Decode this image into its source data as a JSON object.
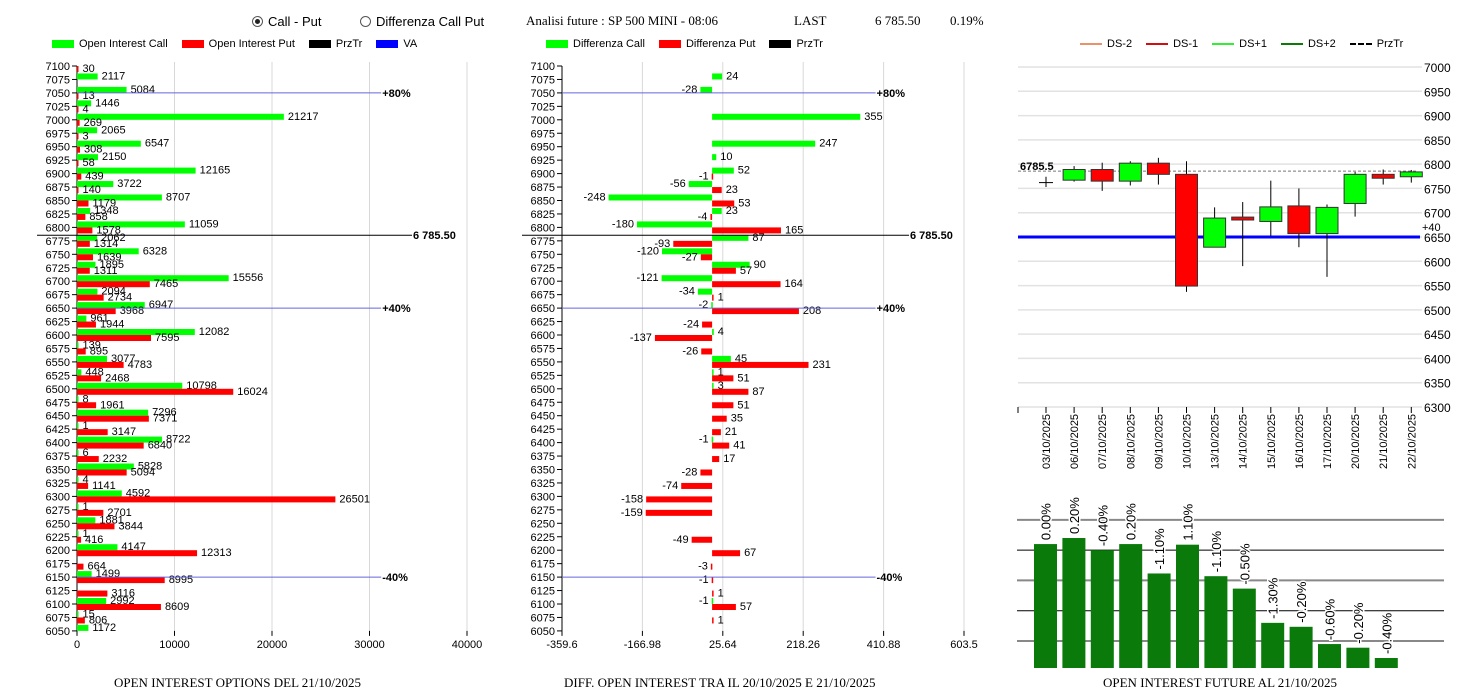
{
  "header": {
    "radio_call_put": "Call - Put",
    "radio_diff": "Differenza Call Put",
    "selected_radio": "call_put",
    "analysis_label": "Analisi future : SP 500 MINI - 08:06",
    "last_label": "LAST",
    "last_value": "6 785.50",
    "change_pct": "0.19%"
  },
  "colors": {
    "call": "#00ff00",
    "put": "#ff0000",
    "przTr": "#000000",
    "va": "#0000ff",
    "va_line": "#6666dd",
    "ds_minus2": "#e8916a",
    "ds_minus1": "#d01010",
    "ds_plus1": "#33ee33",
    "ds_plus2": "#0a7a0a",
    "oi_bar": "#0a7a0a"
  },
  "chart_data": [
    {
      "id": "oi_options",
      "type": "bar",
      "orientation": "horizontal",
      "title": "OPEN INTEREST OPTIONS DEL 21/10/2025",
      "legend": [
        "Open Interest Call",
        "Open Interest Put",
        "PrzTr",
        "VA"
      ],
      "legend_placement": "top",
      "xlim": [
        0,
        40000
      ],
      "xticks": [
        "0",
        "10000",
        "20000",
        "30000",
        "40000"
      ],
      "categories": [
        "7100",
        "7075",
        "7050",
        "7025",
        "7000",
        "6975",
        "6950",
        "6925",
        "6900",
        "6875",
        "6850",
        "6825",
        "6800",
        "6775",
        "6750",
        "6725",
        "6700",
        "6675",
        "6650",
        "6625",
        "6600",
        "6575",
        "6550",
        "6525",
        "6500",
        "6475",
        "6450",
        "6425",
        "6400",
        "6375",
        "6350",
        "6325",
        "6300",
        "6275",
        "6250",
        "6225",
        "6200",
        "6175",
        "6150",
        "6125",
        "6100",
        "6075",
        "6050"
      ],
      "series": [
        {
          "name": "Open Interest Call",
          "values": [
            0,
            2117,
            5084,
            1446,
            21217,
            2065,
            6547,
            2150,
            12165,
            3722,
            8707,
            1348,
            11059,
            2062,
            6328,
            1895,
            15556,
            2094,
            6947,
            961,
            12082,
            139,
            3077,
            448,
            10798,
            8,
            7296,
            1,
            8722,
            6,
            5828,
            4,
            4592,
            1,
            1881,
            1,
            4147,
            0,
            1499,
            0,
            2992,
            15,
            1172
          ]
        },
        {
          "name": "Open Interest Put",
          "values": [
            30,
            0,
            13,
            4,
            269,
            3,
            308,
            58,
            439,
            140,
            1179,
            858,
            1578,
            1314,
            1639,
            1311,
            7465,
            2734,
            3968,
            1944,
            7595,
            895,
            4783,
            2468,
            16024,
            1961,
            7371,
            3147,
            6840,
            2232,
            5094,
            1141,
            26501,
            2701,
            3844,
            416,
            12313,
            664,
            8995,
            3116,
            8609,
            806,
            0
          ]
        }
      ],
      "annotations": [
        {
          "label": "+80%",
          "strike": 7050,
          "type": "VA"
        },
        {
          "label": "6 785.50",
          "price": 6785.5,
          "type": "PrzTr"
        },
        {
          "label": "+40%",
          "strike": 6650,
          "type": "VA"
        },
        {
          "label": "-40%",
          "strike": 6150,
          "type": "VA"
        }
      ]
    },
    {
      "id": "oi_diff",
      "type": "bar",
      "orientation": "horizontal",
      "title": "DIFF. OPEN INTEREST TRA IL 20/10/2025 E 21/10/2025",
      "legend": [
        "Differenza Call",
        "Differenza Put",
        "PrzTr"
      ],
      "legend_placement": "top",
      "xlim": [
        -359.6,
        603.5
      ],
      "xticks": [
        "-359.6",
        "-166.98",
        "25.64",
        "218.26",
        "410.88",
        "603.5"
      ],
      "categories": [
        "7100",
        "7075",
        "7050",
        "7025",
        "7000",
        "6975",
        "6950",
        "6925",
        "6900",
        "6875",
        "6850",
        "6825",
        "6800",
        "6775",
        "6750",
        "6725",
        "6700",
        "6675",
        "6650",
        "6625",
        "6600",
        "6575",
        "6550",
        "6525",
        "6500",
        "6475",
        "6450",
        "6425",
        "6400",
        "6375",
        "6350",
        "6325",
        "6300",
        "6275",
        "6250",
        "6225",
        "6200",
        "6175",
        "6150",
        "6125",
        "6100",
        "6075",
        "6050"
      ],
      "series": [
        {
          "name": "Differenza Call",
          "values": [
            null,
            24,
            -28,
            null,
            355,
            null,
            247,
            10,
            52,
            -56,
            -248,
            23,
            -180,
            87,
            -120,
            90,
            -121,
            -34,
            -2,
            null,
            4,
            null,
            45,
            1,
            3,
            null,
            null,
            null,
            -1,
            null,
            null,
            null,
            null,
            null,
            null,
            null,
            null,
            null,
            null,
            null,
            -1,
            null,
            null
          ]
        },
        {
          "name": "Differenza Put",
          "values": [
            null,
            null,
            null,
            null,
            null,
            null,
            null,
            null,
            -1,
            23,
            53,
            -4,
            165,
            -93,
            -27,
            57,
            164,
            1,
            208,
            -24,
            -137,
            -26,
            231,
            51,
            87,
            51,
            35,
            21,
            41,
            17,
            -28,
            -74,
            -158,
            -159,
            null,
            -49,
            67,
            -3,
            -1,
            1,
            57,
            1,
            null
          ]
        }
      ],
      "annotations": [
        {
          "label": "+80%",
          "strike": 7050,
          "type": "VA"
        },
        {
          "label": "6 785.50",
          "price": 6785.5,
          "type": "PrzTr"
        },
        {
          "label": "+40%",
          "strike": 6650,
          "type": "VA"
        },
        {
          "label": "-40%",
          "strike": 6150,
          "type": "VA"
        }
      ]
    },
    {
      "id": "future_candles",
      "type": "candlestick",
      "legend": [
        "DS-2",
        "DS-1",
        "DS+1",
        "DS+2",
        "PrzTr"
      ],
      "legend_placement": "top",
      "ylim": [
        6300,
        7000
      ],
      "yticks": [
        "7000",
        "6950",
        "6900",
        "6850",
        "6800",
        "6750",
        "6700",
        "6650",
        "6600",
        "6550",
        "6500",
        "6450",
        "6400",
        "6350",
        "6300"
      ],
      "price_label": "6785.5",
      "price": 6785.5,
      "level_line": {
        "value": 6650,
        "label": "+40"
      },
      "categories": [
        "03/10/2025",
        "06/10/2025",
        "07/10/2025",
        "08/10/2025",
        "09/10/2025",
        "10/10/2025",
        "13/10/2025",
        "14/10/2025",
        "15/10/2025",
        "16/10/2025",
        "17/10/2025",
        "20/10/2025",
        "21/10/2025",
        "22/10/2025"
      ],
      "ohlc": [
        [
          6762,
          6774,
          6753,
          6762
        ],
        [
          6767,
          6796,
          6764,
          6789
        ],
        [
          6789,
          6803,
          6745,
          6765
        ],
        [
          6765,
          6806,
          6756,
          6802
        ],
        [
          6802,
          6813,
          6758,
          6779
        ],
        [
          6779,
          6806,
          6537,
          6549
        ],
        [
          6629,
          6711,
          6629,
          6689
        ],
        [
          6691,
          6722,
          6590,
          6685
        ],
        [
          6682,
          6766,
          6652,
          6712
        ],
        [
          6714,
          6750,
          6629,
          6657
        ],
        [
          6657,
          6717,
          6568,
          6711
        ],
        [
          6719,
          6784,
          6692,
          6779
        ],
        [
          6779,
          6789,
          6758,
          6771
        ],
        [
          6774,
          6788,
          6762,
          6784
        ]
      ]
    },
    {
      "id": "oi_future",
      "type": "bar",
      "title": "OPEN INTEREST FUTURE AL 21/10/2025",
      "grid": true,
      "ylim": [
        0,
        5.0
      ],
      "values_relative": [
        4.09,
        4.29,
        3.89,
        4.09,
        3.12,
        4.07,
        3.03,
        2.62,
        1.49,
        1.36,
        0.79,
        0.67,
        0.33
      ],
      "labels": [
        "0.00%",
        "0.20%",
        "-0.40%",
        "0.20%",
        "-1.10%",
        "1.10%",
        "-1.10%",
        "-0.50%",
        "-1.30%",
        "-0.20%",
        "-0.60%",
        "-0.20%",
        "-0.40%"
      ]
    }
  ]
}
